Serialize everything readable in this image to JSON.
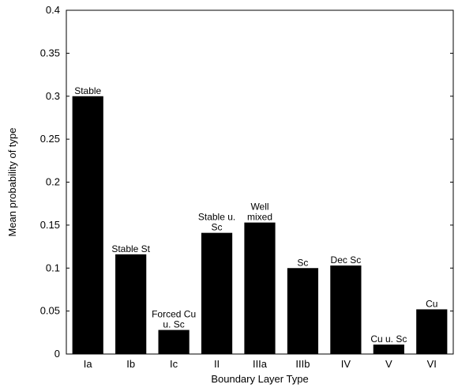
{
  "chart_data": {
    "type": "bar",
    "title": "",
    "xlabel": "Boundary Layer Type",
    "ylabel": "Mean probability of type",
    "ylim": [
      0,
      0.4
    ],
    "yticks": [
      "0",
      "0.05",
      "0.1",
      "0.15",
      "0.2",
      "0.25",
      "0.3",
      "0.35",
      "0.4"
    ],
    "yticks_values": [
      0,
      0.05,
      0.1,
      0.15,
      0.2,
      0.25,
      0.3,
      0.35,
      0.4
    ],
    "grid": false,
    "bar_color": "#000000",
    "categories": [
      "Ia",
      "Ib",
      "Ic",
      "II",
      "IIIa",
      "IIIb",
      "IV",
      "V",
      "VI"
    ],
    "values": [
      0.3,
      0.116,
      0.028,
      0.141,
      0.153,
      0.1,
      0.103,
      0.011,
      0.052
    ],
    "bar_labels": [
      [
        "Stable"
      ],
      [
        "Stable St"
      ],
      [
        "Forced Cu",
        "u. Sc"
      ],
      [
        "Stable u.",
        "Sc"
      ],
      [
        "Well",
        "mixed"
      ],
      [
        "Sc"
      ],
      [
        "Dec Sc"
      ],
      [
        "Cu u. Sc"
      ],
      [
        "Cu"
      ]
    ]
  }
}
